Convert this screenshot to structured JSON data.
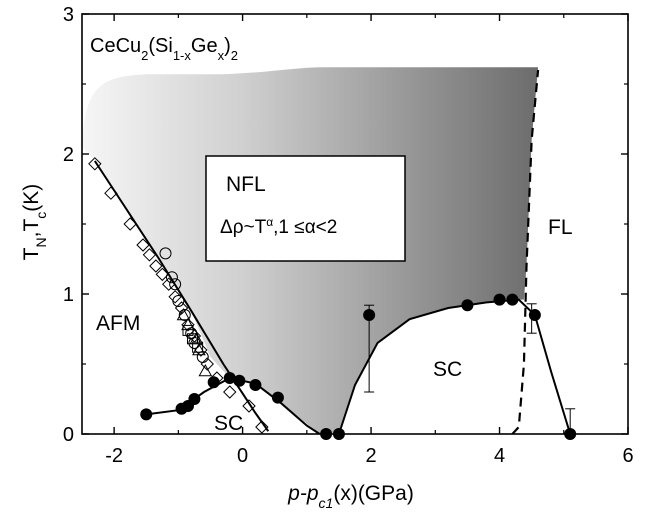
{
  "chart_data": {
    "type": "scatter",
    "compound": {
      "prefix": "CeCu",
      "sub1": "2",
      "mid": "(Si",
      "sub2": "1-x",
      "mid2": "Ge",
      "sub3": "x",
      "close": ")",
      "sub4": "2"
    },
    "xlabel": {
      "main": "p-p",
      "sub": "c1",
      "rest": "(x)(GPa)"
    },
    "ylabel": {
      "t1": "T",
      "s1": "N",
      "comma": ",",
      "t2": "T",
      "s2": "c",
      "rest": "(K)"
    },
    "xlim": [
      -2.5,
      6
    ],
    "ylim": [
      0,
      3
    ],
    "xticks": [
      "-2",
      "0",
      "2",
      "4",
      "6"
    ],
    "yticks": [
      "0",
      "1",
      "2",
      "3"
    ],
    "regions": {
      "nfl_title": "NFL",
      "nfl_formula": {
        "a": "Δρ~T",
        "sup": "α",
        "b": ",1 ≤α<2"
      },
      "fl": "FL",
      "afm": "AFM",
      "sc_left": "SC",
      "sc_right": "SC"
    },
    "afm_boundary": [
      [
        -2.3,
        1.95
      ],
      [
        -1.8,
        1.6
      ],
      [
        -1.3,
        1.25
      ],
      [
        -0.8,
        0.88
      ],
      [
        -0.3,
        0.5
      ],
      [
        0.2,
        0.15
      ],
      [
        0.4,
        0.02
      ]
    ],
    "sc_dome_left": {
      "points": [
        [
          -1.5,
          0.14
        ],
        [
          -0.95,
          0.18
        ],
        [
          -0.85,
          0.2
        ],
        [
          -0.75,
          0.25
        ],
        [
          -0.45,
          0.37
        ],
        [
          -0.2,
          0.4
        ],
        [
          -0.05,
          0.38
        ],
        [
          0.2,
          0.35
        ],
        [
          0.55,
          0.26
        ]
      ],
      "curve": [
        [
          -1.5,
          0.14
        ],
        [
          -1.0,
          0.17
        ],
        [
          -0.6,
          0.3
        ],
        [
          -0.2,
          0.4
        ],
        [
          0.2,
          0.36
        ],
        [
          0.6,
          0.22
        ],
        [
          1.0,
          0.06
        ],
        [
          1.2,
          0.0
        ]
      ]
    },
    "sc_dome_right": {
      "points": [
        [
          1.3,
          0.0
        ],
        [
          1.5,
          0.0
        ],
        [
          1.97,
          0.85
        ],
        [
          3.5,
          0.92
        ],
        [
          4.0,
          0.96
        ],
        [
          4.2,
          0.96
        ],
        [
          4.55,
          0.85
        ],
        [
          5.1,
          0.0
        ]
      ],
      "errorbars": [
        [
          1.97,
          0.3,
          0.92
        ],
        [
          4.5,
          0.72,
          0.93
        ],
        [
          5.1,
          0.0,
          0.18
        ]
      ],
      "curve": [
        [
          1.5,
          0.0
        ],
        [
          1.75,
          0.35
        ],
        [
          2.1,
          0.65
        ],
        [
          2.6,
          0.82
        ],
        [
          3.2,
          0.9
        ],
        [
          3.8,
          0.94
        ],
        [
          4.3,
          0.96
        ],
        [
          4.55,
          0.85
        ],
        [
          4.8,
          0.45
        ],
        [
          5.1,
          0.0
        ]
      ]
    },
    "fl_boundary_dashed": [
      [
        4.2,
        0.0
      ],
      [
        4.3,
        0.05
      ],
      [
        4.38,
        0.5
      ],
      [
        4.42,
        1.2
      ],
      [
        4.5,
        2.1
      ],
      [
        4.6,
        2.6
      ]
    ],
    "afm_diamonds": [
      [
        -2.3,
        1.93
      ],
      [
        -2.05,
        1.72
      ],
      [
        -1.75,
        1.5
      ],
      [
        -1.55,
        1.35
      ],
      [
        -1.45,
        1.28
      ],
      [
        -1.35,
        1.2
      ],
      [
        -1.25,
        1.14
      ],
      [
        -1.15,
        1.07
      ],
      [
        -1.05,
        0.98
      ],
      [
        -0.95,
        0.9
      ],
      [
        -0.85,
        0.78
      ],
      [
        -0.75,
        0.7
      ],
      [
        -0.65,
        0.6
      ],
      [
        -0.55,
        0.5
      ],
      [
        -0.4,
        0.4
      ],
      [
        -0.2,
        0.3
      ],
      [
        0.1,
        0.2
      ],
      [
        0.3,
        0.05
      ]
    ],
    "afm_circles": [
      [
        -1.2,
        1.29
      ],
      [
        -1.1,
        1.12
      ],
      [
        -1.05,
        1.07
      ],
      [
        -1.0,
        0.95
      ],
      [
        -0.9,
        0.85
      ],
      [
        -0.8,
        0.72
      ],
      [
        -0.75,
        0.65
      ],
      [
        -0.62,
        0.55
      ]
    ],
    "afm_triangles": [
      [
        -0.92,
        0.85
      ],
      [
        -0.85,
        0.78
      ],
      [
        -0.72,
        0.68
      ],
      [
        -0.68,
        0.6
      ],
      [
        -0.58,
        0.45
      ]
    ],
    "afm_squares": [
      [
        -0.85,
        0.74
      ],
      [
        -0.78,
        0.68
      ],
      [
        -0.7,
        0.62
      ]
    ]
  }
}
